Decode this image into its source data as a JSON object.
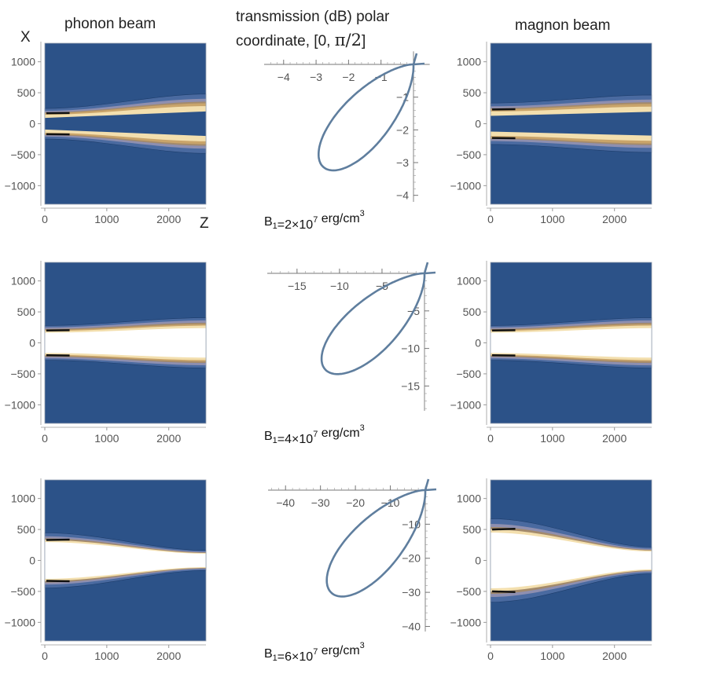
{
  "headers": {
    "phonon": "phonon beam",
    "polar_line1": "transmission (dB) polar",
    "polar_line2_prefix": "coordinate,  [0, ",
    "polar_line2_math": "π/2",
    "polar_line2_suffix": "]",
    "magnon": "magnon beam"
  },
  "axis_labels": {
    "x": "X",
    "z": "Z"
  },
  "colors": {
    "background": "#2c5288",
    "band1": "#4a6aa0",
    "band2": "#8e8fb0",
    "band3": "#a38a6c",
    "band4": "#c9a46a",
    "band5": "#f3dfae",
    "core": "#ffffff",
    "edge": "#111111",
    "curve": "#5f7e9e"
  },
  "chart_data": [
    {
      "type": "heatmap",
      "title": "phonon beam",
      "row": 1,
      "xlabel": "Z",
      "ylabel": "X",
      "xlim": [
        0,
        2600
      ],
      "ylim": [
        -1300,
        1300
      ],
      "xticks": [
        "0",
        "1000",
        "2000"
      ],
      "yticks": [
        "1000",
        "500",
        "0",
        "−500",
        "−1000"
      ],
      "beam": {
        "half_width_start": 170,
        "half_width_end": 330,
        "intensity": "low"
      }
    },
    {
      "type": "line",
      "subtype": "polar",
      "row": 1,
      "title": "transmission (dB) polar coordinate, [0, π/2]",
      "caption": {
        "prefix": "B",
        "sub": "1",
        "mid": "=2×10",
        "sup": "7",
        "unit": " erg/cm",
        "unit_sup": "3"
      },
      "xlim": [
        -4.6,
        0.5
      ],
      "ylim": [
        -4.2,
        0.4
      ],
      "xticks": [
        "−4",
        "−3",
        "−2",
        "−1"
      ],
      "yticks": [
        "−1",
        "−2",
        "−3",
        "−4"
      ],
      "curve": {
        "min_dB": -4.2,
        "peak_angle_deg": 49,
        "width": 0.52
      }
    },
    {
      "type": "heatmap",
      "title": "magnon beam",
      "row": 1,
      "xlabel": "Z",
      "ylabel": "X",
      "xlim": [
        0,
        2600
      ],
      "ylim": [
        -1300,
        1300
      ],
      "xticks": [
        "0",
        "1000",
        "2000"
      ],
      "yticks": [
        "1000",
        "500",
        "0",
        "−500",
        "−1000"
      ],
      "beam": {
        "half_width_start": 230,
        "half_width_end": 320,
        "intensity": "low"
      }
    },
    {
      "type": "heatmap",
      "title": "phonon beam",
      "row": 2,
      "xlabel": "Z",
      "ylabel": "X",
      "xlim": [
        0,
        2600
      ],
      "ylim": [
        -1300,
        1300
      ],
      "xticks": [
        "0",
        "1000",
        "2000"
      ],
      "yticks": [
        "1000",
        "500",
        "0",
        "−500",
        "−1000"
      ],
      "beam": {
        "half_width_start": 200,
        "half_width_end": 290,
        "intensity": "medium"
      }
    },
    {
      "type": "line",
      "subtype": "polar",
      "row": 2,
      "title": "transmission (dB) polar coordinate, [0, π/2]",
      "caption": {
        "prefix": "B",
        "sub": "1",
        "mid": "=4×10",
        "sup": "7",
        "unit": " erg/cm",
        "unit_sup": "3"
      },
      "xlim": [
        -18.5,
        0.5
      ],
      "ylim": [
        -18.3,
        0.4
      ],
      "xticks": [
        "−15",
        "−10",
        "−5"
      ],
      "yticks": [
        "−5",
        "−10",
        "−15"
      ],
      "curve": {
        "min_dB": -17.4,
        "peak_angle_deg": 49,
        "width": 0.52
      }
    },
    {
      "type": "heatmap",
      "title": "magnon beam",
      "row": 2,
      "xlabel": "Z",
      "ylabel": "X",
      "xlim": [
        0,
        2600
      ],
      "ylim": [
        -1300,
        1300
      ],
      "xticks": [
        "0",
        "1000",
        "2000"
      ],
      "yticks": [
        "1000",
        "500",
        "0",
        "−500",
        "−1000"
      ],
      "beam": {
        "half_width_start": 200,
        "half_width_end": 290,
        "intensity": "medium"
      }
    },
    {
      "type": "heatmap",
      "title": "phonon beam",
      "row": 3,
      "xlabel": "Z",
      "ylabel": "X",
      "xlim": [
        0,
        2600
      ],
      "ylim": [
        -1300,
        1300
      ],
      "xticks": [
        "0",
        "1000",
        "2000"
      ],
      "yticks": [
        "1000",
        "500",
        "0",
        "−500",
        "−1000"
      ],
      "beam": {
        "half_width_start": 330,
        "half_width_end": 120,
        "intensity": "high"
      }
    },
    {
      "type": "line",
      "subtype": "polar",
      "row": 3,
      "title": "transmission (dB) polar coordinate, [0, π/2]",
      "caption": {
        "prefix": "B",
        "sub": "1",
        "mid": "=6×10",
        "sup": "7",
        "unit": " erg/cm",
        "unit_sup": "3"
      },
      "xlim": [
        -45,
        1
      ],
      "ylim": [
        -41.5,
        1
      ],
      "xticks": [
        "−40",
        "−30",
        "−20",
        "−10"
      ],
      "yticks": [
        "−10",
        "−20",
        "−30",
        "−40"
      ],
      "curve": {
        "min_dB": -40.5,
        "peak_angle_deg": 49,
        "width": 0.52
      }
    },
    {
      "type": "heatmap",
      "title": "magnon beam",
      "row": 3,
      "xlabel": "Z",
      "ylabel": "X",
      "xlim": [
        0,
        2600
      ],
      "ylim": [
        -1300,
        1300
      ],
      "xticks": [
        "0",
        "1000",
        "2000"
      ],
      "yticks": [
        "1000",
        "500",
        "0",
        "−500",
        "−1000"
      ],
      "beam": {
        "half_width_start": 500,
        "half_width_end": 160,
        "intensity": "high"
      }
    }
  ]
}
